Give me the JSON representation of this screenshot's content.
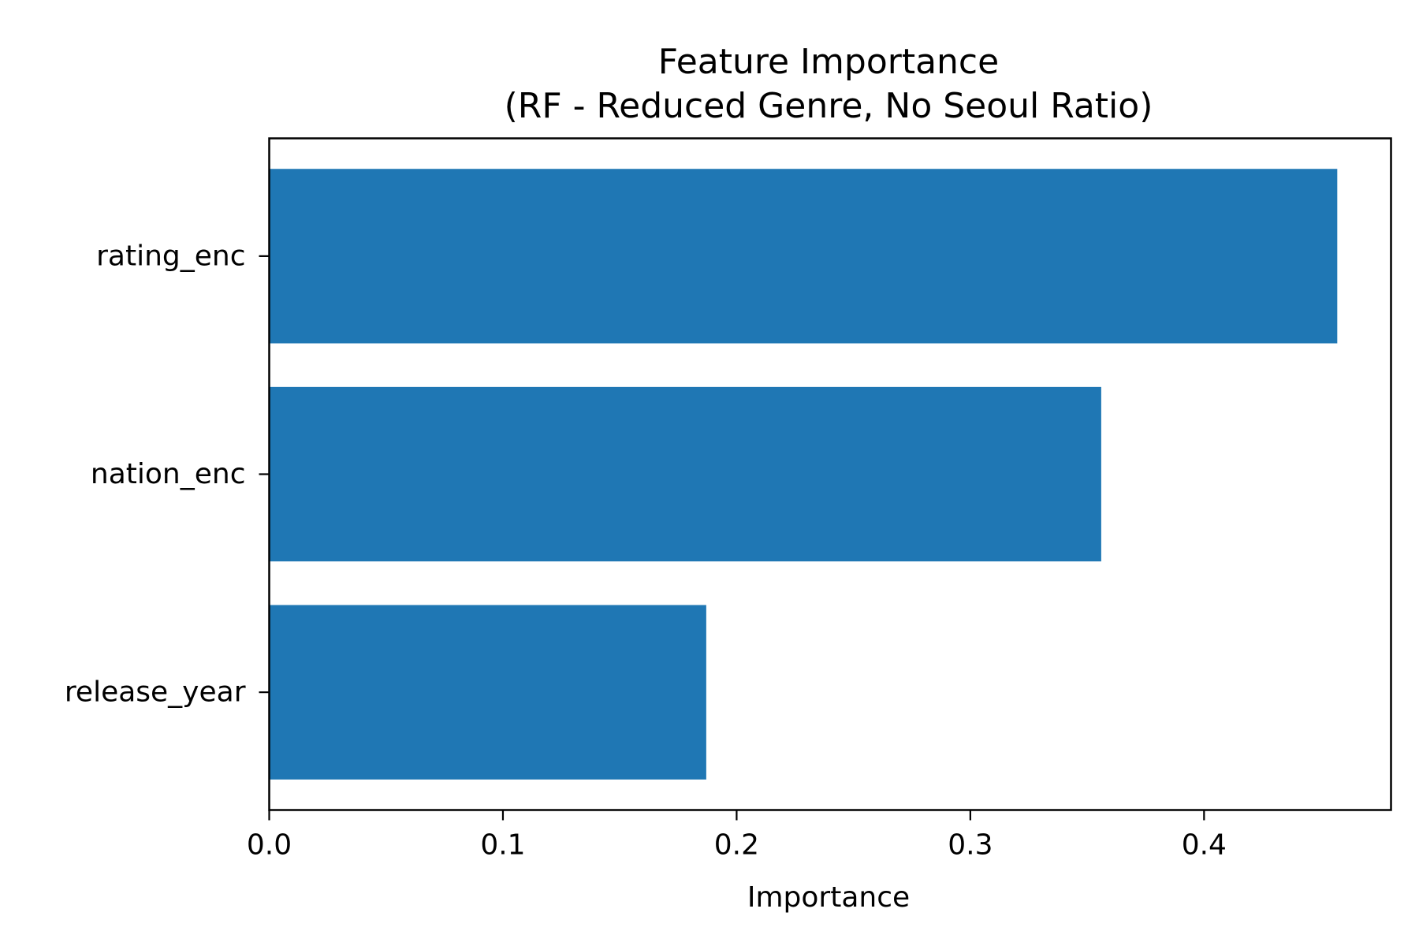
{
  "chart_data": {
    "type": "bar",
    "orientation": "horizontal",
    "title": "Feature Importance",
    "subtitle": "(RF - Reduced Genre, No Seoul Ratio)",
    "xlabel": "Importance",
    "ylabel": "",
    "categories": [
      "release_year",
      "nation_enc",
      "rating_enc"
    ],
    "values": [
      0.187,
      0.356,
      0.457
    ],
    "xlim": [
      0,
      0.48
    ],
    "xticks": [
      0.0,
      0.1,
      0.2,
      0.3,
      0.4
    ],
    "xtick_labels": [
      "0.0",
      "0.1",
      "0.2",
      "0.3",
      "0.4"
    ],
    "grid": false,
    "legend": "none",
    "bar_color": "#1f77b4"
  }
}
